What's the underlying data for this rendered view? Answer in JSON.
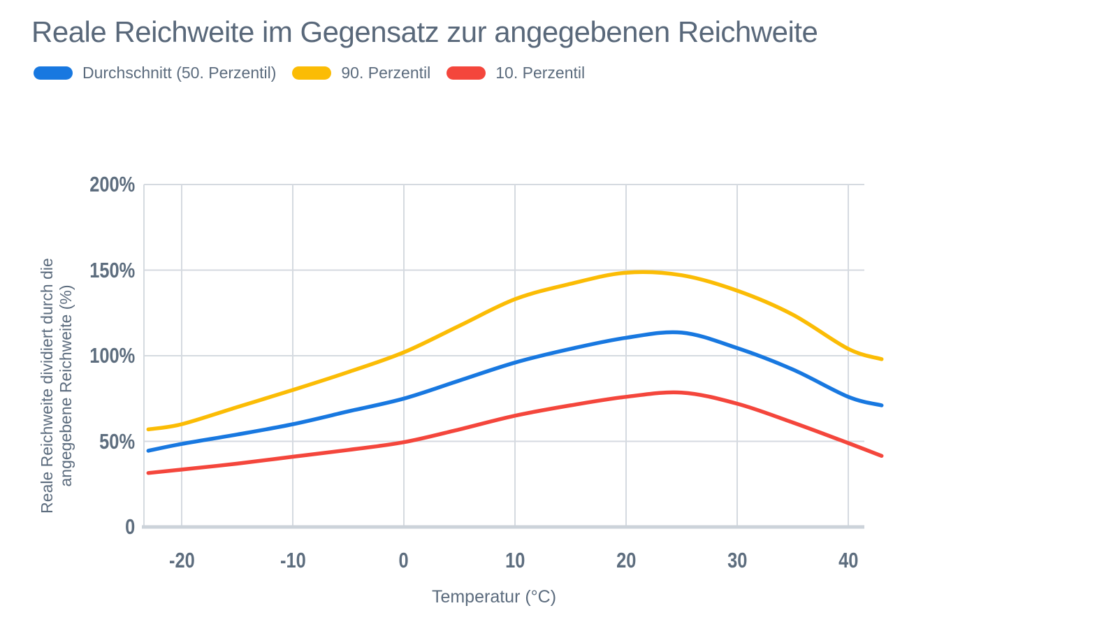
{
  "title": "Reale Reichweite im Gegensatz zur angegebenen Reichweite",
  "legend": [
    {
      "label": "Durchschnitt (50. Perzentil)",
      "color": "#1878e0"
    },
    {
      "label": "90. Perzentil",
      "color": "#fbbc05"
    },
    {
      "label": "10. Perzentil",
      "color": "#f4463c"
    }
  ],
  "colors": {
    "text": "#59687a",
    "tick_text": "#5d6d7e",
    "gridline": "#d5dae0",
    "axis_line": "#ccd3da"
  },
  "chart_data": {
    "type": "line",
    "title": "Reale Reichweite im Gegensatz zur angegebenen Reichweite",
    "xlabel": "Temperatur (°C)",
    "ylabel": "Reale Reichweite dividiert durch die angegebene Reichweite (%)",
    "ylabel_lines": [
      "Reale Reichweite dividiert durch die",
      "angegebene Reichweite (%)"
    ],
    "xlim": [
      -23.4,
      43
    ],
    "ylim": [
      0,
      200
    ],
    "grid": true,
    "legend_position": "top",
    "x_ticks": [
      {
        "value": -20,
        "label": "-20"
      },
      {
        "value": -10,
        "label": "-10"
      },
      {
        "value": 0,
        "label": "0"
      },
      {
        "value": 10,
        "label": "10"
      },
      {
        "value": 20,
        "label": "20"
      },
      {
        "value": 30,
        "label": "30"
      },
      {
        "value": 40,
        "label": "40"
      }
    ],
    "y_ticks": [
      {
        "value": 0,
        "label": "0"
      },
      {
        "value": 50,
        "label": "50%"
      },
      {
        "value": 100,
        "label": "100%"
      },
      {
        "value": 150,
        "label": "150%"
      },
      {
        "value": 200,
        "label": "200%"
      }
    ],
    "x": [
      -23,
      -20,
      -15,
      -10,
      -5,
      0,
      5,
      10,
      15,
      20,
      25,
      30,
      35,
      40,
      43
    ],
    "series": [
      {
        "name": "90. Perzentil",
        "color": "#fbbc05",
        "values": [
          57,
          60,
          70,
          80,
          90.5,
          102,
          117.5,
          133,
          142,
          148.5,
          147,
          138,
          124,
          104,
          98
        ]
      },
      {
        "name": "Durchschnitt (50. Perzentil)",
        "color": "#1878e0",
        "values": [
          44.5,
          48.5,
          54,
          60,
          67.5,
          75,
          85.5,
          96,
          104,
          110.5,
          113.5,
          104.5,
          92,
          76,
          71
        ]
      },
      {
        "name": "10. Perzentil",
        "color": "#f4463c",
        "values": [
          31.5,
          33.5,
          37,
          41,
          45,
          49.5,
          57,
          65,
          71,
          76,
          78.5,
          72,
          61,
          49,
          41.5
        ]
      }
    ]
  }
}
